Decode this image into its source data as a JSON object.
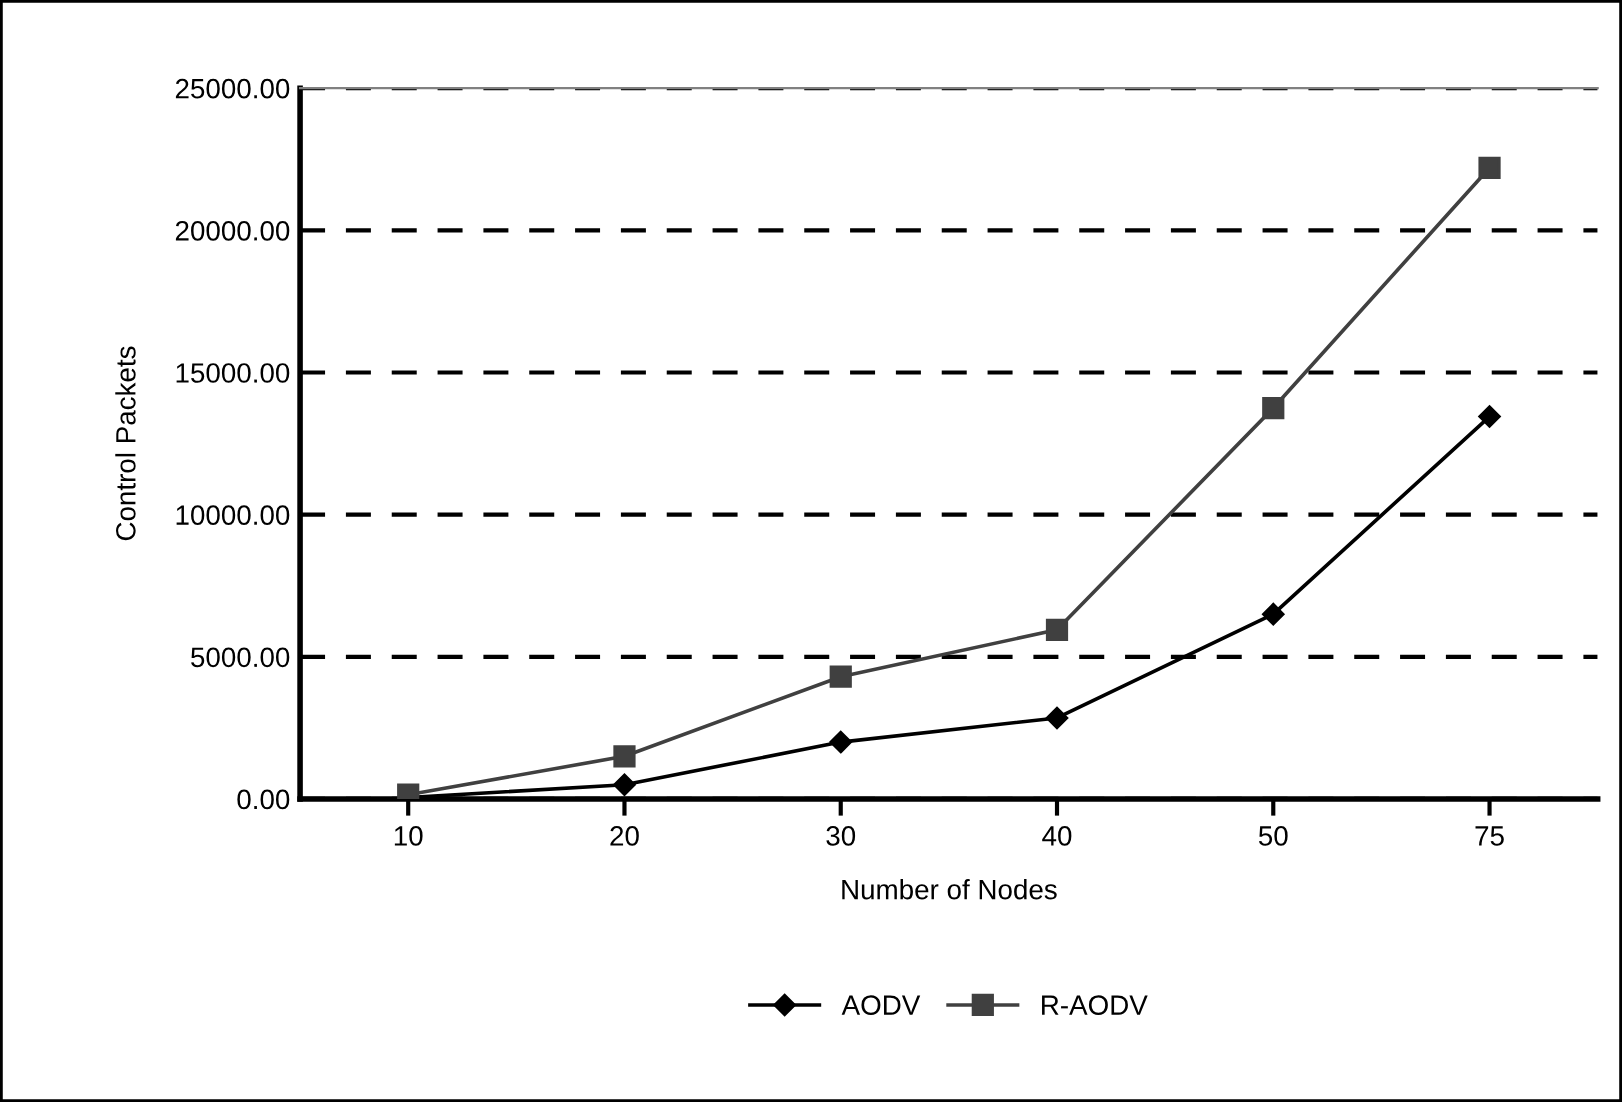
{
  "chart_data": {
    "type": "line",
    "xlabel": "Number of Nodes",
    "ylabel": "Control Packets",
    "categories": [
      "10",
      "20",
      "30",
      "40",
      "50",
      "75"
    ],
    "series": [
      {
        "name": "AODV",
        "color": "#000000",
        "marker": "diamond",
        "values": [
          50,
          500,
          2000,
          2850,
          6500,
          13450
        ]
      },
      {
        "name": "R-AODV",
        "color": "#404040",
        "marker": "square",
        "values": [
          150,
          1500,
          4300,
          5950,
          13750,
          22200
        ]
      }
    ],
    "ylim": [
      0,
      25000
    ],
    "yticks": [
      {
        "value": 0,
        "label": "0.00"
      },
      {
        "value": 5000,
        "label": "5000.00"
      },
      {
        "value": 10000,
        "label": "10000.00"
      },
      {
        "value": 15000,
        "label": "15000.00"
      },
      {
        "value": 20000,
        "label": "20000.00"
      },
      {
        "value": 25000,
        "label": "25000.00"
      }
    ],
    "grid": "y",
    "legend": "bottom",
    "line_style": "solid"
  }
}
